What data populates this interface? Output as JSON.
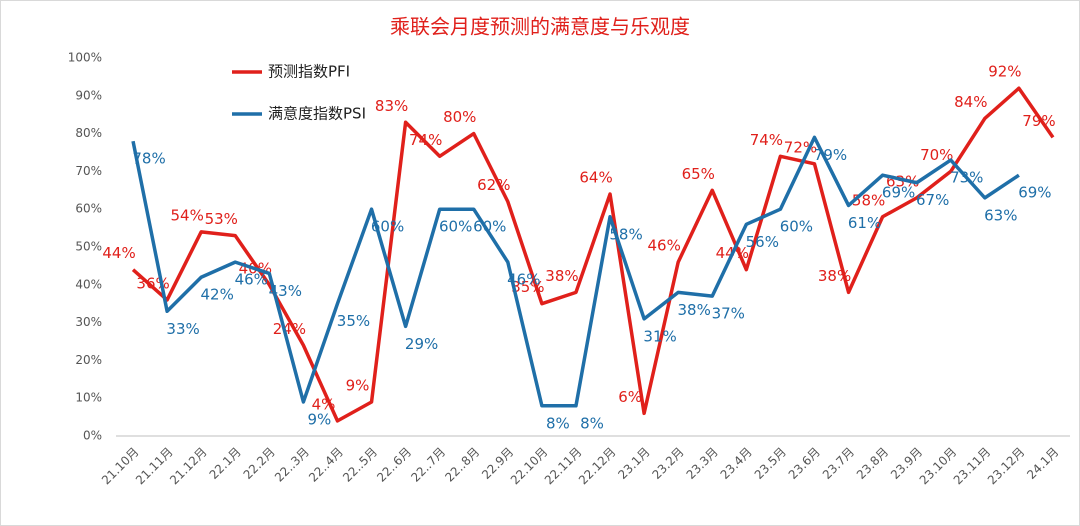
{
  "chart_data": {
    "type": "line",
    "title": "乘联会月度预测的满意度与乐观度",
    "categories": [
      "21.10月",
      "21.11月",
      "21.12月",
      "22.1月",
      "22.2月",
      "22..3月",
      "22..4月",
      "22..5月",
      "22..6月",
      "22..7月",
      "22..8月",
      "22.9月",
      "22.10月",
      "22.11月",
      "22.12月",
      "23.1月",
      "23.2月",
      "23.3月",
      "23.4月",
      "23.5月",
      "23.6月",
      "23.7月",
      "23.8月",
      "23.9月",
      "23.10月",
      "23.11月",
      "23.12月",
      "24.1月"
    ],
    "series": [
      {
        "name": "预测指数PFI",
        "color": "#e0201b",
        "values": [
          44,
          36,
          54,
          53,
          40,
          24,
          4,
          9,
          83,
          74,
          80,
          62,
          35,
          38,
          64,
          6,
          46,
          65,
          44,
          74,
          72,
          38,
          58,
          63,
          70,
          84,
          92,
          79
        ],
        "value_labels": [
          "44%",
          "36%",
          "54%",
          "53%",
          "40%",
          "24%",
          "4%",
          "9%",
          "83%",
          "74%",
          "80%",
          "62%",
          "35%",
          "38%",
          "64%",
          "6%",
          "46%",
          "65%",
          "44%",
          "74%",
          "72%",
          "38%",
          "58%",
          "63%",
          "70%",
          "84%",
          "92%",
          "79%"
        ]
      },
      {
        "name": "满意度指数PSI",
        "color": "#1f6fa8",
        "values": [
          78,
          33,
          42,
          46,
          43,
          9,
          35,
          60,
          29,
          60,
          60,
          46,
          8,
          8,
          58,
          31,
          38,
          37,
          56,
          60,
          79,
          61,
          69,
          67,
          73,
          63,
          69,
          null
        ],
        "value_labels": [
          "78%",
          "33%",
          "42%",
          "46%",
          "43%",
          "9%",
          "35%",
          "60%",
          "29%",
          "60%",
          "60%",
          "46%",
          "8%",
          "8%",
          "58%",
          "31%",
          "38%",
          "37%",
          "56%",
          "60%",
          "79%",
          "61%",
          "69%",
          "67%",
          "73%",
          "63%",
          "69%",
          null
        ]
      }
    ],
    "ylim": [
      0,
      100
    ],
    "yticks": [
      {
        "value": 0,
        "label": "0%"
      },
      {
        "value": 10,
        "label": "10%"
      },
      {
        "value": 20,
        "label": "20%"
      },
      {
        "value": 30,
        "label": "30%"
      },
      {
        "value": 40,
        "label": "40%"
      },
      {
        "value": 50,
        "label": "50%"
      },
      {
        "value": 60,
        "label": "60%"
      },
      {
        "value": 70,
        "label": "70%"
      },
      {
        "value": 80,
        "label": "80%"
      },
      {
        "value": 90,
        "label": "90%"
      },
      {
        "value": 100,
        "label": "100%"
      }
    ],
    "grid": false,
    "legend": "upper left"
  }
}
